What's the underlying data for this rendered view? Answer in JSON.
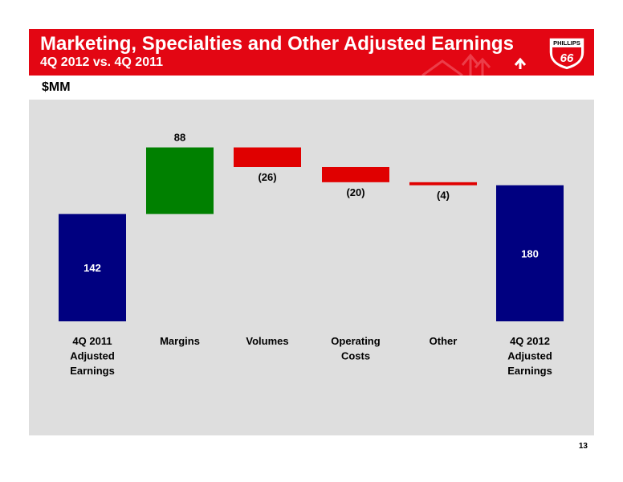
{
  "header": {
    "title": "Marketing, Specialties and Other Adjusted Earnings",
    "subtitle": "4Q 2012 vs. 4Q 2011",
    "logo_text": "PHILLIPS",
    "logo_number": "66"
  },
  "unit_label": "$MM",
  "page_number": "13",
  "colors": {
    "banner": "#e30613",
    "plot_background": "#dedede",
    "total": "#000080",
    "increase": "#008000",
    "decrease": "#e00000"
  },
  "chart_data": {
    "type": "bar",
    "subtype": "waterfall",
    "categories": [
      [
        "4Q 2011",
        "Adjusted",
        "Earnings"
      ],
      [
        "Margins"
      ],
      [
        "Volumes"
      ],
      [
        "Operating",
        "Costs"
      ],
      [
        "Other"
      ],
      [
        "4Q 2012",
        "Adjusted",
        "Earnings"
      ]
    ],
    "values": [
      142,
      88,
      -26,
      -20,
      -4,
      180
    ],
    "kinds": [
      "total",
      "increase",
      "decrease",
      "decrease",
      "decrease",
      "total"
    ],
    "data_labels": [
      "142",
      "88",
      "(26)",
      "(20)",
      "(4)",
      "180"
    ],
    "ylim": [
      0,
      250
    ],
    "grid": false,
    "legend": "none"
  }
}
